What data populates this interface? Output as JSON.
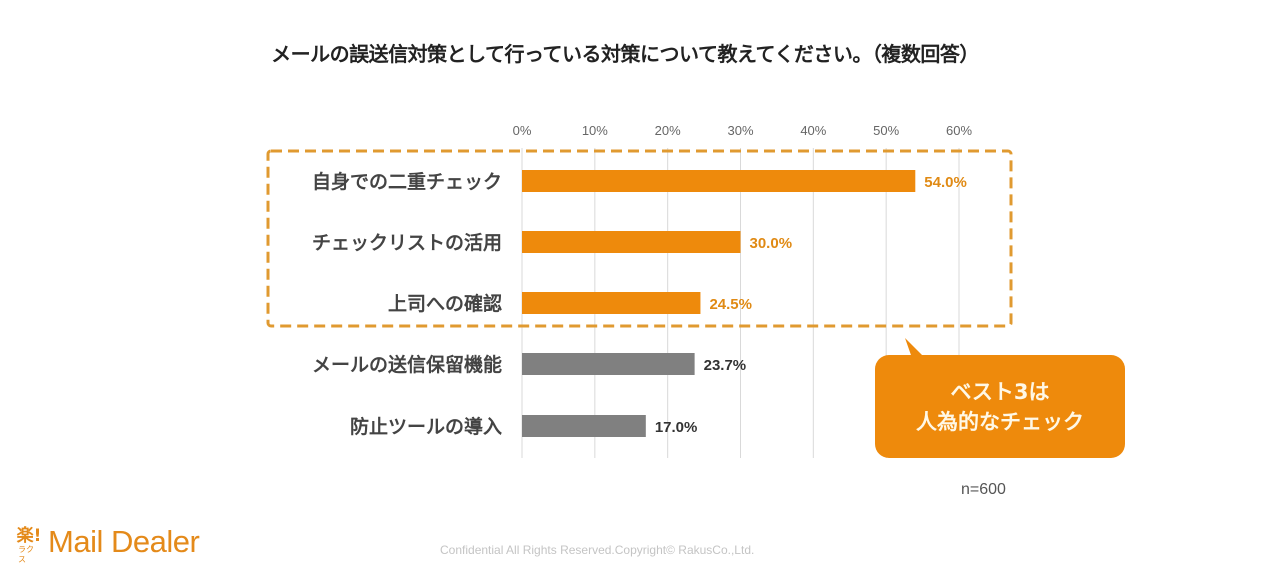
{
  "chart_data": {
    "type": "bar",
    "orientation": "horizontal",
    "title": "メールの誤送信対策として行っている対策について教えてください。（複数回答）",
    "categories": [
      "自身での二重チェック",
      "チェックリストの活用",
      "上司への確認",
      "メールの送信保留機能",
      "防止ツールの導入"
    ],
    "values": [
      54.0,
      30.0,
      24.5,
      23.7,
      17.0
    ],
    "value_labels": [
      "54.0%",
      "30.0%",
      "24.5%",
      "23.7%",
      "17.0%"
    ],
    "highlighted": [
      true,
      true,
      true,
      false,
      false
    ],
    "xlim": [
      0,
      60
    ],
    "xticks": [
      0,
      10,
      20,
      30,
      40,
      50,
      60
    ],
    "xtick_labels": [
      "0%",
      "10%",
      "20%",
      "30%",
      "40%",
      "50%",
      "60%"
    ],
    "xlabel": "",
    "ylabel": "",
    "grid": true,
    "colors": {
      "highlight": "#ee8a0c",
      "normal": "#808080",
      "highlight_label": "#e08a14",
      "normal_label": "#333333",
      "box_border": "#e09a30"
    }
  },
  "callout": {
    "line1": "ベスト3は",
    "line2": "人為的なチェック"
  },
  "sample_size": "n=600",
  "footer": {
    "logo_kanji": "楽!",
    "logo_kana": "ラクス",
    "logo_text": "Mail Dealer",
    "copyright": "Confidential All Rights Reserved.Copyright© RakusCo.,Ltd."
  }
}
